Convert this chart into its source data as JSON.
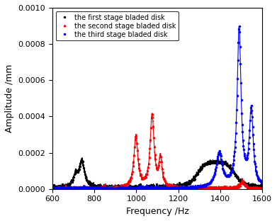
{
  "xlabel": "Frequency /Hz",
  "ylabel": "Amplitude /mm",
  "xlim": [
    600,
    1600
  ],
  "ylim": [
    0,
    0.001
  ],
  "yticks": [
    0.0,
    0.0002,
    0.0004,
    0.0006,
    0.0008,
    0.001
  ],
  "xticks": [
    600,
    800,
    1000,
    1200,
    1400,
    1600
  ],
  "legend": [
    "the first stage bladed disk",
    "the second stage bladed disk",
    "the third stage bladed disk"
  ],
  "colors": [
    "black",
    "red",
    "blue"
  ],
  "markers": [
    "o",
    "^",
    "o"
  ],
  "background_color": "#ffffff"
}
